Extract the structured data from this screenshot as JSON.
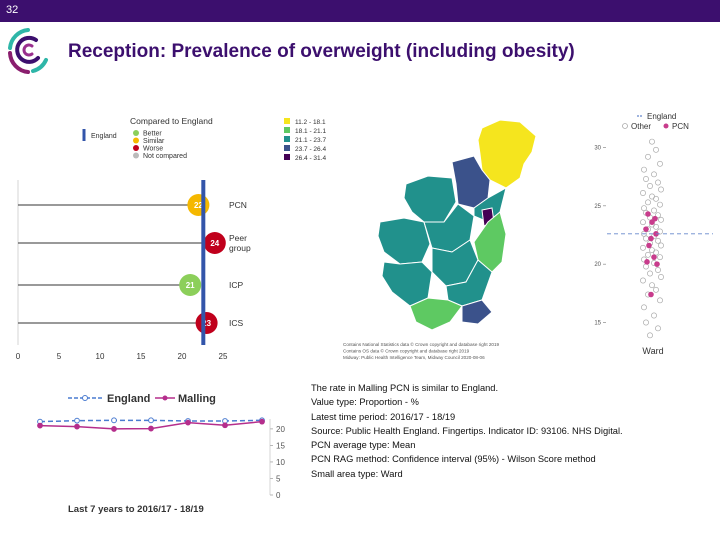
{
  "slide": {
    "number": "32",
    "title": "Reception: Prevalence of overweight (including obesity)",
    "accent_color": "#3c0f6e"
  },
  "icons": {
    "logo": "ring-logo-icon"
  },
  "comparison_chart": {
    "legend_title": "Compared to England",
    "legend_line_label": "England",
    "legend_items": [
      {
        "label": "Better",
        "color": "#8ccf5a"
      },
      {
        "label": "Similar",
        "color": "#f5b800"
      },
      {
        "label": "Worse",
        "color": "#c0001c"
      },
      {
        "label": "Not compared",
        "color": "#bbbbbb"
      }
    ]
  },
  "map": {
    "legend_items": [
      {
        "label": "11.2 - 18.1",
        "color": "#f5e51e"
      },
      {
        "label": "18.1 - 21.1",
        "color": "#5ec962"
      },
      {
        "label": "21.1 - 23.7",
        "color": "#21918c"
      },
      {
        "label": "23.7 - 26.4",
        "color": "#3b528b"
      },
      {
        "label": "26.4 - 31.4",
        "color": "#440154"
      }
    ],
    "credits": [
      "Contains National Statistics data © Crown copyright and database right 2019",
      "Contains OS data © Crown copyright and database right 2019",
      "Midway: Public Health Intelligence Team, Midway Council 2020-08-06"
    ]
  },
  "ward_chart": {
    "legend_england": "England",
    "legend_other": "Other",
    "legend_pcn": "PCN",
    "xlabel": "Ward",
    "england_value": 22.6,
    "pcn_color": "#c83c8c"
  },
  "info": {
    "lines": [
      "The rate in Malling PCN is similar to England.",
      "Value type: Proportion - %",
      "Latest time period: 2016/17 - 18/19",
      "Source: Public Health England. Fingertips. Indicator ID: 93106. NHS Digital.",
      "PCN average type: Mean",
      "PCN RAG method: Confidence interval (95%) - Wilson Score method",
      "Small area type: Ward"
    ]
  },
  "chart_data": [
    {
      "type": "bar",
      "categories": [
        "PCN",
        "Peer group",
        "ICP",
        "ICS"
      ],
      "values": [
        22,
        24,
        21,
        23
      ],
      "value_labels": [
        "22",
        "24",
        "21",
        "23"
      ],
      "rag": [
        "Similar",
        "Worse",
        "Better",
        "Worse"
      ],
      "colors": [
        "#f5b800",
        "#c0001c",
        "#8ccf5a",
        "#c0001c"
      ],
      "england": 22.6,
      "xlim": [
        0,
        25
      ],
      "xticks": [
        0,
        5,
        10,
        15,
        20,
        25
      ],
      "xtick_labels": [
        "0",
        "5",
        "10",
        "15",
        "20",
        "25"
      ]
    },
    {
      "type": "scatter",
      "xlabel": "Ward",
      "yticks": [
        15,
        20,
        25,
        30
      ],
      "ytick_labels": [
        "15",
        "20",
        "25",
        "30"
      ],
      "ylim": [
        13.5,
        31.5
      ],
      "england": 22.6,
      "other": [
        30.5,
        29.8,
        29.2,
        28.6,
        28.1,
        27.7,
        27.3,
        27.0,
        26.7,
        26.4,
        26.1,
        25.8,
        25.6,
        25.3,
        25.1,
        24.8,
        24.6,
        24.4,
        24.2,
        24.0,
        23.8,
        23.6,
        23.4,
        23.2,
        23.0,
        22.8,
        22.6,
        22.4,
        22.2,
        22.0,
        21.8,
        21.6,
        21.4,
        21.2,
        21.0,
        20.8,
        20.6,
        20.4,
        20.1,
        19.8,
        19.5,
        19.2,
        18.9,
        18.6,
        18.2,
        17.8,
        17.4,
        16.9,
        16.3,
        15.6,
        15.0,
        14.5,
        13.9
      ],
      "pcn": [
        24.3,
        23.9,
        23.6,
        23.0,
        22.6,
        22.2,
        21.6,
        20.6,
        20.2,
        20.0,
        17.4
      ]
    },
    {
      "type": "line",
      "x": [
        1,
        2,
        3,
        4,
        5,
        6,
        7
      ],
      "series": [
        {
          "name": "England",
          "values": [
            22.2,
            22.5,
            22.6,
            22.6,
            22.4,
            22.4,
            22.6
          ],
          "color": "#4a7bd0"
        },
        {
          "name": "Malling",
          "values": [
            21.0,
            20.7,
            20.0,
            20.1,
            21.9,
            21.1,
            22.2
          ],
          "color": "#b52e8c"
        }
      ],
      "xlabel": "Last 7 years to 2016/17 - 18/19",
      "yticks": [
        0,
        5,
        10,
        15,
        20
      ],
      "ytick_labels": [
        "0",
        "5",
        "10",
        "15",
        "20"
      ],
      "ylim": [
        0,
        23
      ]
    }
  ]
}
